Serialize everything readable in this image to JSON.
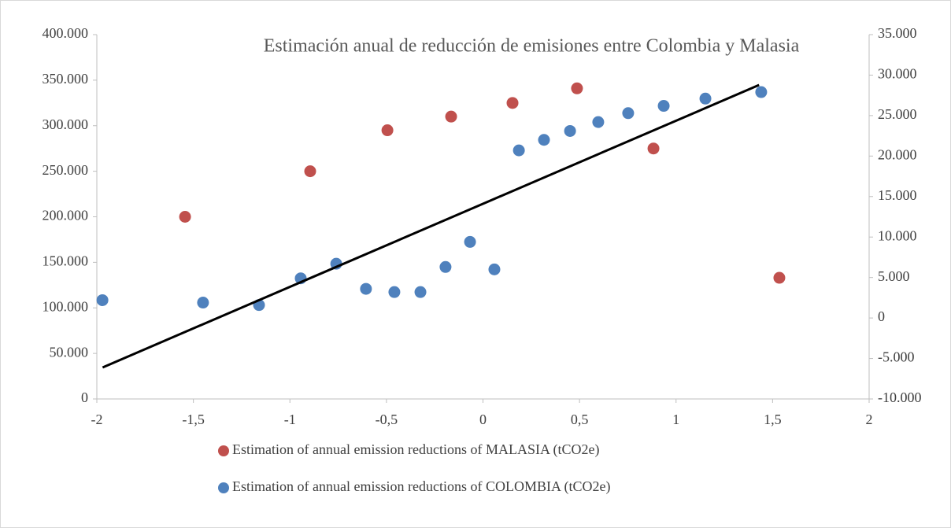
{
  "chart_data": {
    "type": "scatter",
    "title": "Estimación anual de reducción de emisiones entre Colombia y Malasia",
    "xlim": [
      -2,
      2
    ],
    "xticks": [
      -2,
      {
        "value": -1.5,
        "label": "-1,5"
      },
      -1,
      {
        "value": -0.5,
        "label": "-0,5"
      },
      0,
      {
        "value": 0.5,
        "label": "0,5"
      },
      1,
      {
        "value": 1.5,
        "label": "1,5"
      },
      2
    ],
    "ylim": [
      0,
      400000
    ],
    "yticks": [
      0,
      {
        "value": 50000,
        "label": "50.000"
      },
      {
        "value": 100000,
        "label": "100.000"
      },
      {
        "value": 150000,
        "label": "150.000"
      },
      {
        "value": 200000,
        "label": "200.000"
      },
      {
        "value": 250000,
        "label": "250.000"
      },
      {
        "value": 300000,
        "label": "300.000"
      },
      {
        "value": 350000,
        "label": "350.000"
      },
      {
        "value": 400000,
        "label": "400.000"
      }
    ],
    "y2lim": [
      -10000,
      35000
    ],
    "y2ticks": [
      {
        "value": -10000,
        "label": "-10.000"
      },
      {
        "value": -5000,
        "label": "-5.000"
      },
      0,
      {
        "value": 5000,
        "label": "5.000"
      },
      {
        "value": 10000,
        "label": "10.000"
      },
      {
        "value": 15000,
        "label": "15.000"
      },
      {
        "value": 20000,
        "label": "20.000"
      },
      {
        "value": 25000,
        "label": "25.000"
      },
      {
        "value": 30000,
        "label": "30.000"
      },
      {
        "value": 35000,
        "label": "35.000"
      }
    ],
    "legend": "bottom",
    "series": [
      {
        "name": "Estimation of annual emission reductions of MALASIA (tCO2e)",
        "color": "#c0504d",
        "axis": "y",
        "x": [
          -1.543,
          -0.895,
          -0.495,
          -0.165,
          0.153,
          0.487,
          0.883,
          1.535
        ],
        "values": [
          200000,
          250000,
          295000,
          310000,
          325000,
          341000,
          275000,
          133000
        ]
      },
      {
        "name": "Estimation of annual emission reductions of COLOMBIA (tCO2e)",
        "color": "#4f81bd",
        "axis": "y2",
        "x": [
          -1.971,
          -1.45,
          -1.16,
          -0.944,
          -0.76,
          -0.606,
          -0.459,
          -0.324,
          -0.194,
          -0.067,
          0.059,
          0.186,
          0.316,
          0.451,
          0.597,
          0.752,
          0.936,
          1.152,
          1.441
        ],
        "values": [
          2200,
          1900,
          1600,
          4900,
          6700,
          3600,
          3200,
          3200,
          6300,
          9400,
          6000,
          20700,
          22000,
          23100,
          24200,
          25300,
          26200,
          27100,
          27900
        ]
      }
    ],
    "trendline": {
      "color": "#000000",
      "axis": "y",
      "x": [
        -1.97,
        1.43
      ],
      "values": [
        34600,
        344700
      ]
    }
  }
}
